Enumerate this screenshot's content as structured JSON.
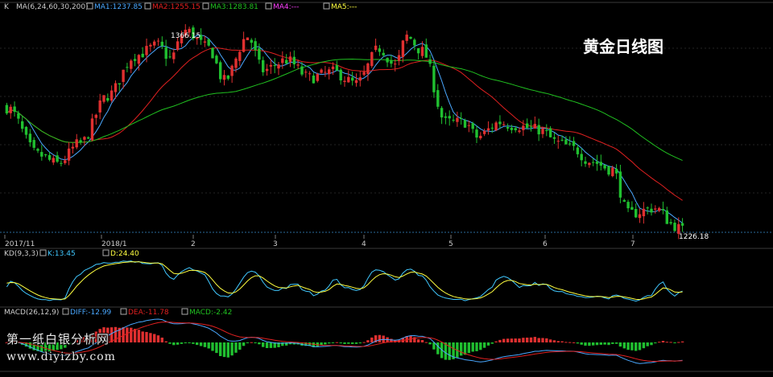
{
  "chart_data": {
    "type": "candlestick",
    "title": "黄金日线图",
    "x_tick_labels": [
      "2017/11",
      "2018/1",
      "2",
      "3",
      "4",
      "5",
      "6",
      "7"
    ],
    "main_panel": {
      "indicator_label": "MA(6,24,60,30,200)",
      "label_prefix": "K",
      "legends": [
        {
          "name": "MA1:1237.85",
          "color": "#4aa8ff"
        },
        {
          "name": "MA2:1255.15",
          "color": "#e02020"
        },
        {
          "name": "MA3:1283.81",
          "color": "#20c020"
        },
        {
          "name": "MA4:---",
          "color": "#ff40ff"
        },
        {
          "name": "MA5:---",
          "color": "#ffff40"
        }
      ],
      "high_label": "1366.15",
      "last_label": "1226.18",
      "ylim": [
        1224,
        1375
      ],
      "up_color": "#e03030",
      "down_color": "#20c030",
      "candles": []
    },
    "kd_panel": {
      "label": "KD(9,3,3)",
      "legends": [
        {
          "name": "K:13.45",
          "color": "#40c8ff"
        },
        {
          "name": "D:24.40",
          "color": "#ffff40"
        }
      ]
    },
    "macd_panel": {
      "label": "MACD(26,12,9)",
      "legends": [
        {
          "name": "DIFF:-12.99",
          "color": "#4aa8ff"
        },
        {
          "name": "DEA:-11.78",
          "color": "#e02020"
        },
        {
          "name": "MACD:-2.42",
          "color": "#20c020"
        }
      ]
    },
    "watermark": {
      "line1": "第一纸白银分析网",
      "line2": "www.diyizby.com"
    }
  }
}
